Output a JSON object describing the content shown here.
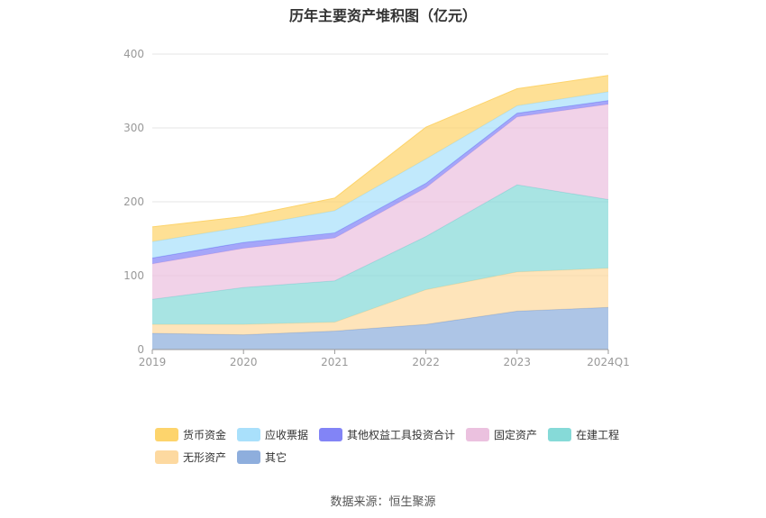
{
  "chart_data": {
    "type": "area",
    "stacked": true,
    "title": "历年主要资产堆积图（亿元）",
    "categories": [
      "2019",
      "2020",
      "2021",
      "2022",
      "2023",
      "2024Q1"
    ],
    "ylim": [
      0,
      400
    ],
    "yticks": [
      0,
      100,
      200,
      300,
      400
    ],
    "grid": true,
    "legend_position": "bottom",
    "series": [
      {
        "name": "其它",
        "color": "#8eaedd",
        "values": [
          22,
          20,
          25,
          34,
          52,
          57
        ]
      },
      {
        "name": "无形资产",
        "color": "#fdd9a0",
        "values": [
          12,
          14,
          12,
          47,
          53,
          53
        ]
      },
      {
        "name": "在建工程",
        "color": "#86dad8",
        "values": [
          34,
          50,
          56,
          72,
          118,
          93
        ]
      },
      {
        "name": "固定资产",
        "color": "#ebc1df",
        "values": [
          48,
          53,
          58,
          66,
          92,
          129
        ]
      },
      {
        "name": "其他权益工具投资合计",
        "color": "#8284f6",
        "values": [
          8,
          8,
          7,
          6,
          5,
          5
        ]
      },
      {
        "name": "应收票据",
        "color": "#a9e0fb",
        "values": [
          22,
          21,
          30,
          33,
          10,
          12
        ]
      },
      {
        "name": "货币资金",
        "color": "#fdd46c",
        "values": [
          20,
          14,
          17,
          43,
          23,
          22
        ]
      }
    ],
    "legend_order": [
      "货币资金",
      "应收票据",
      "其他权益工具投资合计",
      "固定资产",
      "在建工程",
      "无形资产",
      "其它"
    ]
  },
  "source": "数据来源：恒生聚源"
}
